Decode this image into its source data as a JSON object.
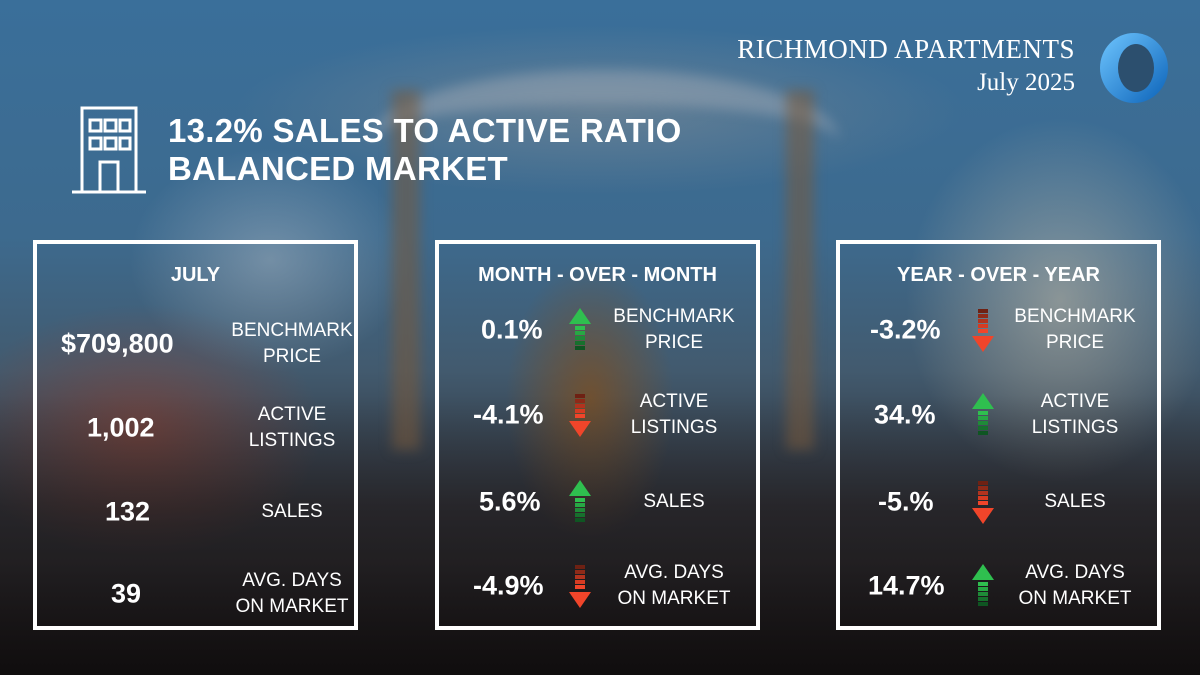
{
  "brand": {
    "title": "RICHMOND APARTMENTS",
    "subtitle": "July 2025",
    "icon": "ring-logo-icon",
    "color": "#1e90e6"
  },
  "headline": {
    "line1": "13.2% SALES TO ACTIVE RATIO",
    "line2": "BALANCED MARKET",
    "icon": "building-icon"
  },
  "colors": {
    "up": "#2fbf4f",
    "down": "#f0452a"
  },
  "panels": {
    "july": {
      "title": "JULY",
      "rows": [
        {
          "value": "$709,800",
          "label1": "BENCHMARK",
          "label2": "PRICE"
        },
        {
          "value": "1,002",
          "label1": "ACTIVE",
          "label2": "LISTINGS"
        },
        {
          "value": "132",
          "label1": "SALES",
          "label2": ""
        },
        {
          "value": "39",
          "label1": "AVG. DAYS",
          "label2": "ON MARKET"
        }
      ]
    },
    "mom": {
      "title": "MONTH - OVER - MONTH",
      "rows": [
        {
          "value": "0.1%",
          "direction": "up",
          "label1": "BENCHMARK",
          "label2": "PRICE"
        },
        {
          "value": "-4.1%",
          "direction": "down",
          "label1": "ACTIVE",
          "label2": "LISTINGS"
        },
        {
          "value": "5.6%",
          "direction": "up",
          "label1": "SALES",
          "label2": ""
        },
        {
          "value": "-4.9%",
          "direction": "down",
          "label1": "AVG. DAYS",
          "label2": "ON MARKET"
        }
      ]
    },
    "yoy": {
      "title": "YEAR - OVER - YEAR",
      "rows": [
        {
          "value": "-3.2%",
          "direction": "down",
          "label1": "BENCHMARK",
          "label2": "PRICE"
        },
        {
          "value": "34.%",
          "direction": "up",
          "label1": "ACTIVE",
          "label2": "LISTINGS"
        },
        {
          "value": "-5.%",
          "direction": "down",
          "label1": "SALES",
          "label2": ""
        },
        {
          "value": "14.7%",
          "direction": "up",
          "label1": "AVG. DAYS",
          "label2": "ON MARKET"
        }
      ]
    }
  }
}
